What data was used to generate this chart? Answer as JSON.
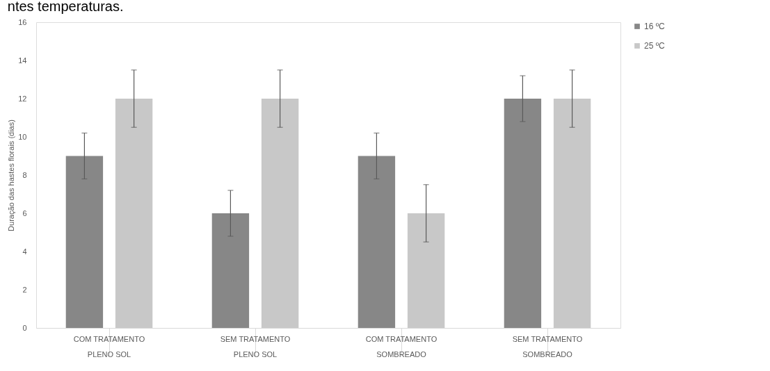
{
  "chart_data": {
    "type": "bar",
    "annotations": [
      "ntes temperaturas."
    ],
    "ylabel": "Duração das hastes florais (dias)",
    "categories": [
      "COM TRATAMENTO\nPLENO SOL",
      "SEM TRATAMENTO\nPLENO SOL",
      "COM TRATAMENTO\nSOMBREADO",
      "SEM TRATAMENTO\nSOMBREADO"
    ],
    "series": [
      {
        "name": "16 ºC",
        "color": "#878787",
        "values": [
          9,
          6,
          9,
          12
        ],
        "errors": [
          1.2,
          1.2,
          1.2,
          1.2
        ]
      },
      {
        "name": "25 ºC",
        "color": "#c8c8c8",
        "values": [
          12,
          12,
          6,
          12
        ],
        "errors": [
          1.5,
          1.5,
          1.5,
          1.5
        ]
      }
    ],
    "ylim": [
      0,
      16
    ],
    "yticks": [
      0,
      2,
      4,
      6,
      8,
      10,
      12,
      14,
      16
    ],
    "grid": false,
    "legend": "right"
  }
}
